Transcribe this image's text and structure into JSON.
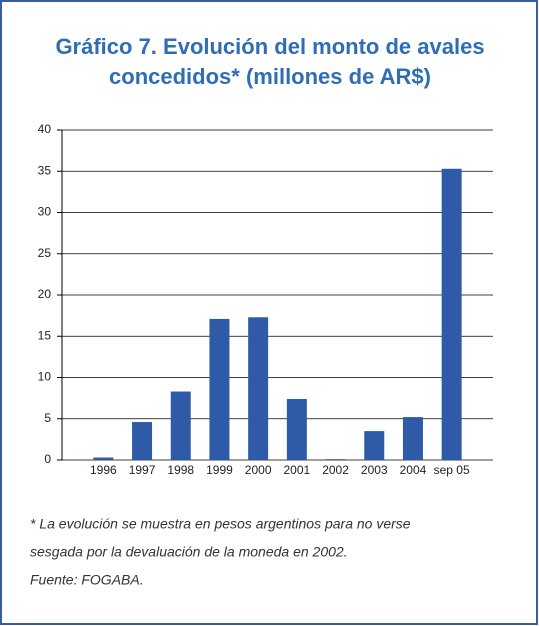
{
  "chart_data": {
    "type": "bar",
    "title": [
      "Gráfico 7. Evolución del monto de avales",
      "concedidos* (millones de AR$)"
    ],
    "categories": [
      "1996",
      "1997",
      "1998",
      "1999",
      "2000",
      "2001",
      "2002",
      "2003",
      "2004",
      "sep 05"
    ],
    "values": [
      0.3,
      4.6,
      8.3,
      17.1,
      17.3,
      7.4,
      0.1,
      3.5,
      5.2,
      35.3
    ],
    "color": "#2f5aa8",
    "ylim": [
      0,
      40
    ],
    "yticks": [
      0,
      5,
      10,
      15,
      20,
      25,
      30,
      35,
      40
    ],
    "grid": true,
    "notes": [
      "* La evolución se muestra en pesos argentinos para no verse",
      "sesgada por la devaluación de la moneda en 2002.",
      "Fuente: FOGABA."
    ]
  }
}
